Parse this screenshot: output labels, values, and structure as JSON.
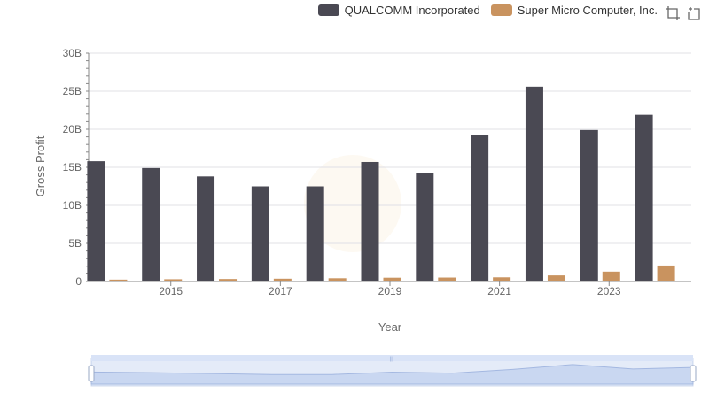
{
  "chart_data": {
    "type": "bar",
    "title": "",
    "xlabel": "Year",
    "ylabel": "Gross Profit",
    "ylim": [
      0,
      30000000000
    ],
    "yticks": [
      0,
      5000000000,
      10000000000,
      15000000000,
      20000000000,
      25000000000,
      30000000000
    ],
    "ytick_labels": [
      "0",
      "5B",
      "10B",
      "15B",
      "20B",
      "25B",
      "30B"
    ],
    "categories": [
      "2014",
      "2015",
      "2016",
      "2017",
      "2018",
      "2019",
      "2020",
      "2021",
      "2022",
      "2023",
      "2024"
    ],
    "xtick_labels_shown": [
      "2015",
      "2017",
      "2019",
      "2021",
      "2023"
    ],
    "grid": true,
    "legend_position": "top-right",
    "series": [
      {
        "name": "QUALCOMM Incorporated",
        "color": "#4a4953",
        "values": [
          15800000000,
          14900000000,
          13800000000,
          12500000000,
          12500000000,
          15700000000,
          14300000000,
          19300000000,
          25600000000,
          19900000000,
          21900000000
        ]
      },
      {
        "name": "Super Micro Computer, Inc.",
        "color": "#c9935f",
        "values": [
          250000000,
          300000000,
          330000000,
          370000000,
          430000000,
          500000000,
          520000000,
          550000000,
          800000000,
          1300000000,
          2100000000
        ]
      }
    ]
  },
  "legend": {
    "series1": "QUALCOMM Incorporated",
    "series2": "Super Micro Computer, Inc."
  },
  "toolbox": {
    "zoom_icon": "zoom-select-icon",
    "reset_icon": "zoom-reset-icon"
  },
  "datazoom": {
    "range": [
      0,
      100
    ]
  }
}
